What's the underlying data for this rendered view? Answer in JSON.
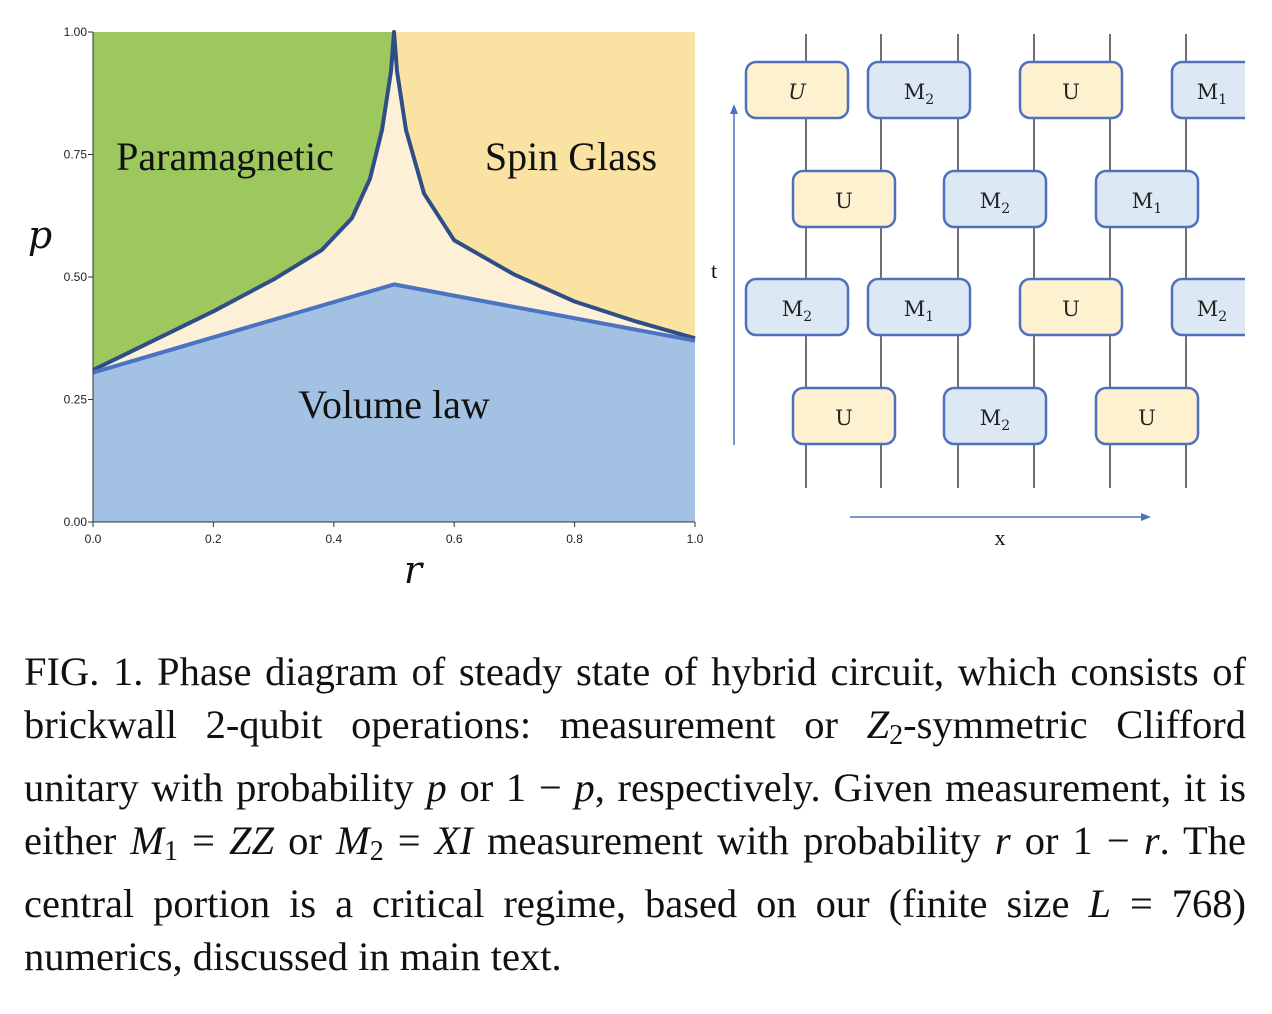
{
  "phase_diagram": {
    "xlabel": "r",
    "ylabel": "p",
    "xticks": [
      "0.0",
      "0.2",
      "0.4",
      "0.6",
      "0.8",
      "1.0"
    ],
    "yticks": [
      "0.00",
      "0.25",
      "0.50",
      "0.75",
      "1.00"
    ],
    "xlim": [
      0,
      1
    ],
    "ylim": [
      0,
      1
    ],
    "regions": {
      "paramagnetic": "Paramagnetic",
      "spin_glass": "Spin Glass",
      "volume_law": "Volume law"
    },
    "colors": {
      "paramagnetic": "#9dc85e",
      "spin_glass": "#fae3a2",
      "volume_law": "#a3c2e3",
      "critical": "#fcf1d6",
      "boundary": "#2f4d86",
      "volume_boundary": "#4b72c3"
    },
    "upper_boundary": [
      [
        0.0,
        0.31
      ],
      [
        0.1,
        0.37
      ],
      [
        0.2,
        0.43
      ],
      [
        0.3,
        0.495
      ],
      [
        0.38,
        0.555
      ],
      [
        0.43,
        0.62
      ],
      [
        0.46,
        0.7
      ],
      [
        0.48,
        0.8
      ],
      [
        0.495,
        0.92
      ],
      [
        0.5,
        1.0
      ],
      [
        0.505,
        0.92
      ],
      [
        0.52,
        0.8
      ],
      [
        0.55,
        0.67
      ],
      [
        0.6,
        0.575
      ],
      [
        0.7,
        0.505
      ],
      [
        0.8,
        0.45
      ],
      [
        0.9,
        0.41
      ],
      [
        1.0,
        0.375
      ]
    ],
    "volume_law_boundary": [
      [
        0.0,
        0.305
      ],
      [
        0.5,
        0.485
      ],
      [
        1.0,
        0.37
      ]
    ]
  },
  "circuit": {
    "time_label": "t",
    "space_label": "x",
    "rows": [
      [
        {
          "label": "U",
          "sub": "",
          "type": "unitary",
          "italic": true
        },
        {
          "label": "M",
          "sub": "2",
          "type": "measure"
        },
        {
          "label": "U",
          "sub": "",
          "type": "unitary"
        },
        {
          "label": "M",
          "sub": "1",
          "type": "measure"
        }
      ],
      [
        {
          "label": "U",
          "sub": "",
          "type": "unitary"
        },
        {
          "label": "M",
          "sub": "2",
          "type": "measure"
        },
        {
          "label": "M",
          "sub": "1",
          "type": "measure"
        }
      ],
      [
        {
          "label": "M",
          "sub": "2",
          "type": "measure"
        },
        {
          "label": "M",
          "sub": "1",
          "type": "measure"
        },
        {
          "label": "U",
          "sub": "",
          "type": "unitary"
        },
        {
          "label": "M",
          "sub": "2",
          "type": "measure"
        }
      ],
      [
        {
          "label": "U",
          "sub": "",
          "type": "unitary"
        },
        {
          "label": "M",
          "sub": "2",
          "type": "measure"
        },
        {
          "label": "U",
          "sub": "",
          "type": "unitary"
        }
      ]
    ],
    "colors": {
      "unitary": "#fdf1cf",
      "measure": "#dde8f5",
      "stroke": "#4f71bd"
    }
  },
  "caption": {
    "fig": "FIG. 1.",
    "t1": " Phase diagram of steady state of hybrid circuit, which consists of brickwall 2-qubit operations: measurement or ",
    "z": "Z",
    "z_sub": "2",
    "t2": "-symmetric Clifford unitary with probability ",
    "p": "p",
    "t3": " or 1 − ",
    "p2": "p",
    "t4": ", respectively. Given measurement, it is either ",
    "m1": "M",
    "m1_sub": "1",
    "eq1": " = ",
    "zz": "ZZ",
    "t5": " or ",
    "m2": "M",
    "m2_sub": "2",
    "eq2": " = ",
    "xi": "XI",
    "t6": " measurement with probability ",
    "r": "r",
    "t7": " or 1 − ",
    "r2": "r",
    "t8": ". The central portion is a critical regime, based on our (finite size ",
    "l": "L",
    "t9": " = 768) numerics, discussed in main text."
  }
}
